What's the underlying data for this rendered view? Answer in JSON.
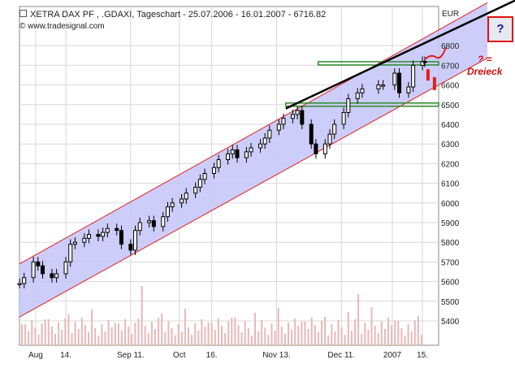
{
  "header": {
    "title": "XETRA DAX PF    , .GDAXI, Tageschart - 25.07.2006 - 16.01.2007 - 6716.82",
    "source": "© www.tradesignal.com",
    "currency": "EUR"
  },
  "annotations": {
    "question_box": "?",
    "triangle_note_line1": "? =",
    "triangle_note_line2": "Dreieck"
  },
  "colors": {
    "channel_fill": "#c8c8f8",
    "channel_line": "#e02020",
    "support_line": "#2a8a2a",
    "trend_line": "#000000",
    "volume": "#e8b8b8",
    "candle": "#000000"
  },
  "chart_data": {
    "type": "candlestick",
    "title": "XETRA DAX PF    , .GDAXI, Tageschart - 25.07.2006 - 16.01.2007 - 6716.82",
    "ylabel": "EUR",
    "ylim": [
      5300,
      6900
    ],
    "y_ticks": [
      5400,
      5500,
      5600,
      5700,
      5800,
      5900,
      6000,
      6100,
      6200,
      6300,
      6400,
      6500,
      6600,
      6700,
      6800
    ],
    "x_tick_labels": [
      "Aug",
      "14.",
      "Sep 11.",
      "Oct",
      "16.",
      "Nov 13.",
      "Dec 11.",
      "2007",
      "15."
    ],
    "x_tick_dates": [
      "2006-08-01",
      "2006-08-14",
      "2006-09-11",
      "2006-10-02",
      "2006-10-16",
      "2006-11-13",
      "2006-12-11",
      "2007-01-02",
      "2007-01-15"
    ],
    "x_range": [
      "2006-07-25",
      "2007-01-22"
    ],
    "grid": true,
    "candles_close_approx": [
      [
        "2006-07-25",
        5590
      ],
      [
        "2006-07-27",
        5620
      ],
      [
        "2006-07-31",
        5700
      ],
      [
        "2006-08-02",
        5680
      ],
      [
        "2006-08-04",
        5640
      ],
      [
        "2006-08-08",
        5620
      ],
      [
        "2006-08-10",
        5640
      ],
      [
        "2006-08-14",
        5700
      ],
      [
        "2006-08-16",
        5790
      ],
      [
        "2006-08-18",
        5800
      ],
      [
        "2006-08-22",
        5820
      ],
      [
        "2006-08-24",
        5840
      ],
      [
        "2006-08-28",
        5830
      ],
      [
        "2006-08-30",
        5850
      ],
      [
        "2006-09-01",
        5870
      ],
      [
        "2006-09-05",
        5860
      ],
      [
        "2006-09-07",
        5790
      ],
      [
        "2006-09-11",
        5760
      ],
      [
        "2006-09-13",
        5860
      ],
      [
        "2006-09-15",
        5900
      ],
      [
        "2006-09-19",
        5910
      ],
      [
        "2006-09-21",
        5880
      ],
      [
        "2006-09-25",
        5930
      ],
      [
        "2006-09-27",
        5980
      ],
      [
        "2006-09-29",
        6000
      ],
      [
        "2006-10-03",
        6020
      ],
      [
        "2006-10-05",
        6050
      ],
      [
        "2006-10-09",
        6080
      ],
      [
        "2006-10-11",
        6120
      ],
      [
        "2006-10-13",
        6150
      ],
      [
        "2006-10-17",
        6180
      ],
      [
        "2006-10-19",
        6220
      ],
      [
        "2006-10-23",
        6250
      ],
      [
        "2006-10-25",
        6270
      ],
      [
        "2006-10-27",
        6230
      ],
      [
        "2006-10-31",
        6260
      ],
      [
        "2006-11-02",
        6280
      ],
      [
        "2006-11-06",
        6300
      ],
      [
        "2006-11-08",
        6330
      ],
      [
        "2006-11-10",
        6370
      ],
      [
        "2006-11-14",
        6400
      ],
      [
        "2006-11-16",
        6430
      ],
      [
        "2006-11-20",
        6450
      ],
      [
        "2006-11-22",
        6470
      ],
      [
        "2006-11-24",
        6400
      ],
      [
        "2006-11-28",
        6300
      ],
      [
        "2006-11-30",
        6250
      ],
      [
        "2006-12-04",
        6300
      ],
      [
        "2006-12-06",
        6350
      ],
      [
        "2006-12-08",
        6400
      ],
      [
        "2006-12-12",
        6460
      ],
      [
        "2006-12-14",
        6530
      ],
      [
        "2006-12-18",
        6560
      ],
      [
        "2006-12-20",
        6580
      ],
      [
        "2006-12-27",
        6600
      ],
      [
        "2006-12-29",
        6600
      ],
      [
        "2007-01-03",
        6660
      ],
      [
        "2007-01-05",
        6560
      ],
      [
        "2007-01-09",
        6590
      ],
      [
        "2007-01-11",
        6700
      ],
      [
        "2007-01-15",
        6720
      ],
      [
        "2007-01-16",
        6716.82
      ]
    ],
    "channel": {
      "upper": [
        [
          "2006-07-25",
          5690
        ],
        [
          "2007-01-22",
          6880
        ]
      ],
      "lower": [
        [
          "2006-07-25",
          5420
        ],
        [
          "2007-01-22",
          6600
        ]
      ]
    },
    "trend_line": [
      [
        "2006-11-17",
        6480
      ],
      [
        "2007-01-28",
        6880
      ]
    ],
    "horizontal_levels": [
      {
        "value": 6710,
        "from": "2006-12-01",
        "to": "2007-01-22"
      },
      {
        "value": 6500,
        "from": "2006-11-17",
        "to": "2007-01-22"
      }
    ],
    "volume_panel": true
  }
}
